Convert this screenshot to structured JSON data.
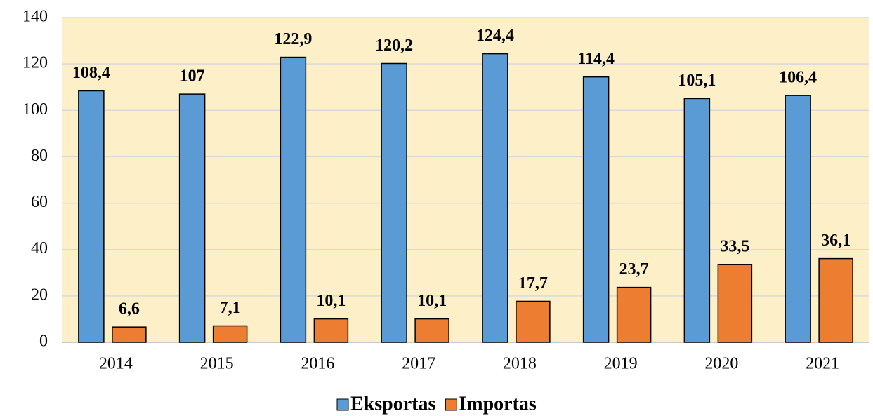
{
  "chart_data": {
    "type": "bar",
    "categories": [
      "2014",
      "2015",
      "2016",
      "2017",
      "2018",
      "2019",
      "2020",
      "2021"
    ],
    "series": [
      {
        "name": "Eksportas",
        "color": "#5b9bd5",
        "values": [
          108.4,
          107,
          122.9,
          120.2,
          124.4,
          114.4,
          105.1,
          106.4
        ],
        "value_labels": [
          "108,4",
          "107",
          "122,9",
          "120,2",
          "124,4",
          "114,4",
          "105,1",
          "106,4"
        ]
      },
      {
        "name": "Importas",
        "color": "#ed7d31",
        "values": [
          6.6,
          7.1,
          10.1,
          10.1,
          17.7,
          23.7,
          33.5,
          36.1
        ],
        "value_labels": [
          "6,6",
          "7,1",
          "10,1",
          "10,1",
          "17,7",
          "23,7",
          "33,5",
          "36,1"
        ]
      }
    ],
    "ylim": [
      0,
      140
    ],
    "yticks": [
      0,
      20,
      40,
      60,
      80,
      100,
      120,
      140
    ],
    "grid": true,
    "legend": "bottom"
  }
}
